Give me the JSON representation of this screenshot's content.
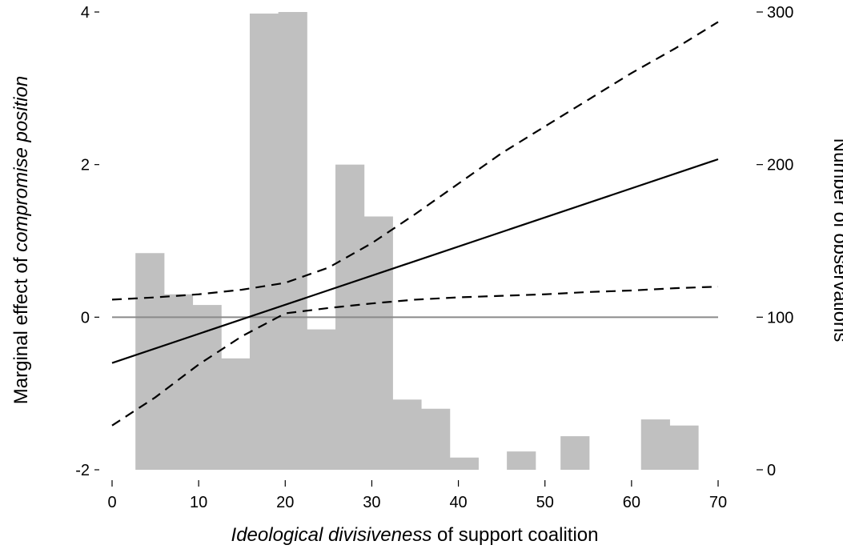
{
  "chart_data": {
    "type": "line",
    "xlabel": {
      "italic": "Ideological divisiveness",
      "rest": " of support coalition"
    },
    "ylabel_left": {
      "prefix": "Marginal effect of ",
      "italic": "compromise position"
    },
    "ylabel_right": "Number of observations",
    "xlim": [
      0,
      70
    ],
    "ylim_left": [
      -2,
      4
    ],
    "ylim_right": [
      0,
      300
    ],
    "x_ticks": [
      "0",
      "10",
      "20",
      "30",
      "40",
      "50",
      "60",
      "70"
    ],
    "y_left_ticks": [
      "-2",
      "0",
      "2",
      "4"
    ],
    "y_right_ticks": [
      "0",
      "100",
      "200",
      "300"
    ],
    "histogram": {
      "bin_width": 3.3,
      "bins": [
        {
          "start": 2.7,
          "count": 142
        },
        {
          "start": 6.0,
          "count": 115
        },
        {
          "start": 9.3,
          "count": 108
        },
        {
          "start": 12.6,
          "count": 73
        },
        {
          "start": 15.9,
          "count": 299
        },
        {
          "start": 19.2,
          "count": 300
        },
        {
          "start": 22.5,
          "count": 92
        },
        {
          "start": 25.8,
          "count": 200
        },
        {
          "start": 29.1,
          "count": 166
        },
        {
          "start": 32.4,
          "count": 46
        },
        {
          "start": 35.7,
          "count": 40
        },
        {
          "start": 39.0,
          "count": 8
        },
        {
          "start": 45.6,
          "count": 12
        },
        {
          "start": 51.8,
          "count": 22
        },
        {
          "start": 61.1,
          "count": 33
        },
        {
          "start": 64.4,
          "count": 29
        }
      ],
      "color": "#c0c0c0"
    },
    "series": [
      {
        "role": "estimate",
        "style": "solid",
        "x": [
          0,
          70
        ],
        "y": [
          -0.6,
          2.07
        ]
      },
      {
        "role": "upper-ci",
        "style": "dashed",
        "x": [
          0,
          5,
          10,
          15,
          20,
          25,
          30,
          35,
          40,
          45,
          50,
          55,
          60,
          65,
          70
        ],
        "y": [
          0.23,
          0.26,
          0.3,
          0.36,
          0.45,
          0.65,
          0.97,
          1.35,
          1.75,
          2.15,
          2.5,
          2.85,
          3.2,
          3.52,
          3.87
        ]
      },
      {
        "role": "lower-ci",
        "style": "dashed",
        "x": [
          0,
          5,
          10,
          15,
          20,
          25,
          30,
          35,
          40,
          45,
          50,
          55,
          60,
          65,
          70
        ],
        "y": [
          -1.42,
          -1.05,
          -0.62,
          -0.25,
          0.05,
          0.12,
          0.18,
          0.23,
          0.26,
          0.28,
          0.3,
          0.33,
          0.35,
          0.38,
          0.4
        ]
      }
    ],
    "reference_line_y": 0,
    "grid": false,
    "legend": "none"
  }
}
